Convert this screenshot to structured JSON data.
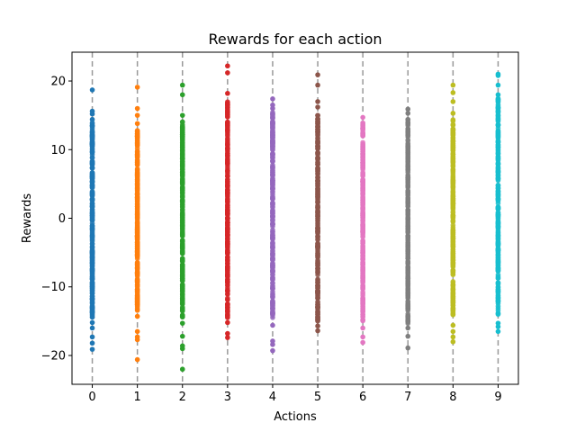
{
  "chart_data": {
    "type": "scatter",
    "title": "Rewards for each action",
    "xlabel": "Actions",
    "ylabel": "Rewards",
    "xlim": [
      -0.45,
      9.45
    ],
    "ylim": [
      -24.2,
      24.2
    ],
    "x_ticks": [
      0,
      1,
      2,
      3,
      4,
      5,
      6,
      7,
      8,
      9
    ],
    "y_ticks": [
      -20,
      -10,
      0,
      10,
      20
    ],
    "y_tick_labels": [
      "−20",
      "−10",
      "0",
      "10",
      "20"
    ],
    "vertical_guides": "dashed gray line at each action",
    "colors": [
      "#1f77b4",
      "#ff7f0e",
      "#2ca02c",
      "#d62728",
      "#9467bd",
      "#8c564b",
      "#e377c2",
      "#7f7f7f",
      "#bcbd22",
      "#17becf"
    ],
    "series": [
      {
        "action": 0,
        "dense_range": [
          -14.5,
          14.0
        ],
        "outliers": [
          18.7,
          15.6,
          15.2,
          14.4,
          -15.2,
          -16.0,
          -17.3,
          -18.2,
          -19.1
        ]
      },
      {
        "action": 1,
        "dense_range": [
          -13.5,
          13.0
        ],
        "outliers": [
          19.1,
          16.0,
          15.0,
          13.8,
          -14.3,
          -16.5,
          -17.3,
          -17.7,
          -20.6
        ]
      },
      {
        "action": 2,
        "dense_range": [
          -14.5,
          14.5
        ],
        "outliers": [
          19.4,
          18.0,
          15.0,
          -15.3,
          -17.2,
          -18.6,
          -19.0,
          -22.0
        ]
      },
      {
        "action": 3,
        "dense_range": [
          -14.5,
          17.0
        ],
        "outliers": [
          22.2,
          21.2,
          18.2,
          -15.2,
          -16.8,
          -17.4
        ]
      },
      {
        "action": 4,
        "dense_range": [
          -14.5,
          15.5
        ],
        "outliers": [
          17.4,
          16.5,
          16.0,
          -15.6,
          -17.9,
          -18.4,
          -19.3
        ]
      },
      {
        "action": 5,
        "dense_range": [
          -15.0,
          15.0
        ],
        "outliers": [
          20.9,
          19.4,
          17.0,
          16.2,
          -15.7,
          -16.4
        ]
      },
      {
        "action": 6,
        "dense_range": [
          -15.0,
          14.0
        ],
        "outliers": [
          14.7,
          -16.0,
          -17.3,
          -18.1
        ]
      },
      {
        "action": 7,
        "dense_range": [
          -15.5,
          14.5
        ],
        "outliers": [
          15.9,
          15.3,
          -16.0,
          -17.2,
          -18.9
        ]
      },
      {
        "action": 8,
        "dense_range": [
          -14.5,
          14.5
        ],
        "outliers": [
          19.4,
          18.3,
          17.0,
          15.3,
          -15.6,
          -16.5,
          -17.3,
          -18.0
        ]
      },
      {
        "action": 9,
        "dense_range": [
          -14.0,
          17.5
        ],
        "outliers": [
          21.0,
          20.8,
          19.4,
          18.0,
          -15.3,
          -15.8,
          -16.5
        ]
      }
    ]
  }
}
